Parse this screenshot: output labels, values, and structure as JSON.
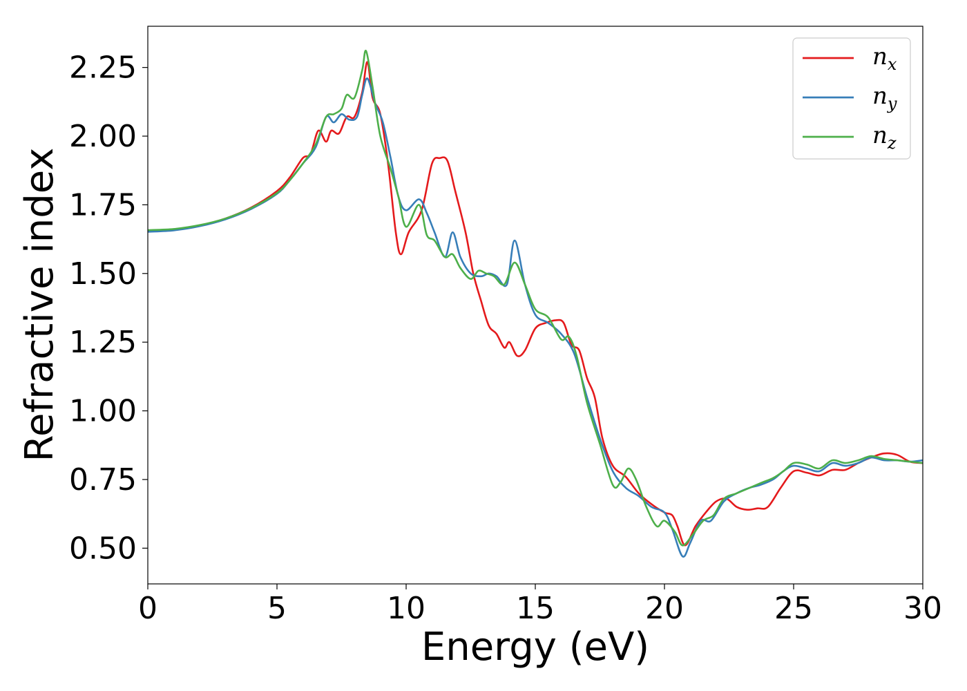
{
  "chart_data": {
    "type": "line",
    "xlabel": "Energy (eV)",
    "ylabel": "Refractive index",
    "xlim": [
      0,
      30
    ],
    "ylim": [
      0.37,
      2.4
    ],
    "xticks": [
      0,
      5,
      10,
      15,
      20,
      25,
      30
    ],
    "yticks": [
      0.5,
      0.75,
      1.0,
      1.25,
      1.5,
      1.75,
      2.0,
      2.25
    ],
    "ytick_labels": [
      "0.50",
      "0.75",
      "1.00",
      "1.25",
      "1.50",
      "1.75",
      "2.00",
      "2.25"
    ],
    "xtick_labels": [
      "0",
      "5",
      "10",
      "15",
      "20",
      "25",
      "30"
    ],
    "grid": false,
    "legend": "top-right",
    "series": [
      {
        "name": "n_x",
        "label_main": "n",
        "label_sub": "x",
        "color": "#e41a1c",
        "points": [
          [
            0,
            1.655
          ],
          [
            1,
            1.66
          ],
          [
            2,
            1.675
          ],
          [
            3,
            1.7
          ],
          [
            4,
            1.74
          ],
          [
            5,
            1.8
          ],
          [
            5.5,
            1.85
          ],
          [
            6,
            1.92
          ],
          [
            6.3,
            1.935
          ],
          [
            6.6,
            2.02
          ],
          [
            6.9,
            1.98
          ],
          [
            7.1,
            2.02
          ],
          [
            7.4,
            2.01
          ],
          [
            7.7,
            2.07
          ],
          [
            8.0,
            2.07
          ],
          [
            8.3,
            2.16
          ],
          [
            8.5,
            2.27
          ],
          [
            8.7,
            2.14
          ],
          [
            9.0,
            2.08
          ],
          [
            9.3,
            1.9
          ],
          [
            9.6,
            1.65
          ],
          [
            9.8,
            1.57
          ],
          [
            10.1,
            1.65
          ],
          [
            10.6,
            1.73
          ],
          [
            11.0,
            1.9
          ],
          [
            11.3,
            1.92
          ],
          [
            11.6,
            1.91
          ],
          [
            11.9,
            1.8
          ],
          [
            12.3,
            1.65
          ],
          [
            12.6,
            1.5
          ],
          [
            12.9,
            1.4
          ],
          [
            13.2,
            1.31
          ],
          [
            13.5,
            1.28
          ],
          [
            13.8,
            1.23
          ],
          [
            14.0,
            1.25
          ],
          [
            14.3,
            1.2
          ],
          [
            14.6,
            1.22
          ],
          [
            15.0,
            1.3
          ],
          [
            15.4,
            1.32
          ],
          [
            15.8,
            1.33
          ],
          [
            16.1,
            1.32
          ],
          [
            16.4,
            1.24
          ],
          [
            16.7,
            1.22
          ],
          [
            17.0,
            1.12
          ],
          [
            17.3,
            1.05
          ],
          [
            17.6,
            0.9
          ],
          [
            18.0,
            0.8
          ],
          [
            18.5,
            0.76
          ],
          [
            19.0,
            0.7
          ],
          [
            19.5,
            0.66
          ],
          [
            20.0,
            0.63
          ],
          [
            20.3,
            0.62
          ],
          [
            20.5,
            0.58
          ],
          [
            20.8,
            0.51
          ],
          [
            21.2,
            0.58
          ],
          [
            21.6,
            0.63
          ],
          [
            22.0,
            0.67
          ],
          [
            22.4,
            0.68
          ],
          [
            22.8,
            0.65
          ],
          [
            23.2,
            0.64
          ],
          [
            23.6,
            0.645
          ],
          [
            24.0,
            0.65
          ],
          [
            24.5,
            0.72
          ],
          [
            25.0,
            0.78
          ],
          [
            25.5,
            0.775
          ],
          [
            26.0,
            0.765
          ],
          [
            26.5,
            0.785
          ],
          [
            27.0,
            0.785
          ],
          [
            27.5,
            0.81
          ],
          [
            28.0,
            0.83
          ],
          [
            28.5,
            0.845
          ],
          [
            29.0,
            0.84
          ],
          [
            29.5,
            0.815
          ],
          [
            30.0,
            0.81
          ]
        ]
      },
      {
        "name": "n_y",
        "label_main": "n",
        "label_sub": "y",
        "color": "#377eb8",
        "points": [
          [
            0,
            1.652
          ],
          [
            1,
            1.657
          ],
          [
            2,
            1.672
          ],
          [
            3,
            1.697
          ],
          [
            4,
            1.735
          ],
          [
            5,
            1.79
          ],
          [
            5.5,
            1.84
          ],
          [
            6,
            1.9
          ],
          [
            6.5,
            1.96
          ],
          [
            6.9,
            2.07
          ],
          [
            7.2,
            2.05
          ],
          [
            7.5,
            2.08
          ],
          [
            7.8,
            2.06
          ],
          [
            8.1,
            2.07
          ],
          [
            8.3,
            2.15
          ],
          [
            8.5,
            2.21
          ],
          [
            8.8,
            2.12
          ],
          [
            9.1,
            2.05
          ],
          [
            9.4,
            1.92
          ],
          [
            9.7,
            1.78
          ],
          [
            10.0,
            1.73
          ],
          [
            10.5,
            1.77
          ],
          [
            10.8,
            1.72
          ],
          [
            11.1,
            1.65
          ],
          [
            11.5,
            1.56
          ],
          [
            11.8,
            1.65
          ],
          [
            12.1,
            1.56
          ],
          [
            12.5,
            1.5
          ],
          [
            12.9,
            1.49
          ],
          [
            13.2,
            1.5
          ],
          [
            13.5,
            1.49
          ],
          [
            13.9,
            1.46
          ],
          [
            14.2,
            1.62
          ],
          [
            14.6,
            1.46
          ],
          [
            15.0,
            1.35
          ],
          [
            15.5,
            1.32
          ],
          [
            16.0,
            1.28
          ],
          [
            16.5,
            1.21
          ],
          [
            17.0,
            1.05
          ],
          [
            17.5,
            0.9
          ],
          [
            18.0,
            0.78
          ],
          [
            18.5,
            0.72
          ],
          [
            19.0,
            0.69
          ],
          [
            19.5,
            0.65
          ],
          [
            20.0,
            0.63
          ],
          [
            20.3,
            0.57
          ],
          [
            20.7,
            0.47
          ],
          [
            21.0,
            0.52
          ],
          [
            21.4,
            0.6
          ],
          [
            21.8,
            0.6
          ],
          [
            22.3,
            0.67
          ],
          [
            22.8,
            0.7
          ],
          [
            23.3,
            0.72
          ],
          [
            23.7,
            0.73
          ],
          [
            24.2,
            0.75
          ],
          [
            24.6,
            0.78
          ],
          [
            25.0,
            0.8
          ],
          [
            25.5,
            0.79
          ],
          [
            26.0,
            0.78
          ],
          [
            26.5,
            0.81
          ],
          [
            27.0,
            0.8
          ],
          [
            27.5,
            0.81
          ],
          [
            28.0,
            0.83
          ],
          [
            28.5,
            0.82
          ],
          [
            29.0,
            0.82
          ],
          [
            29.5,
            0.815
          ],
          [
            30.0,
            0.82
          ]
        ]
      },
      {
        "name": "n_z",
        "label_main": "n",
        "label_sub": "z",
        "color": "#4daf4a",
        "points": [
          [
            0,
            1.658
          ],
          [
            1,
            1.662
          ],
          [
            2,
            1.676
          ],
          [
            3,
            1.7
          ],
          [
            4,
            1.738
          ],
          [
            5,
            1.793
          ],
          [
            5.5,
            1.84
          ],
          [
            6,
            1.9
          ],
          [
            6.5,
            1.97
          ],
          [
            6.9,
            2.07
          ],
          [
            7.2,
            2.08
          ],
          [
            7.5,
            2.1
          ],
          [
            7.7,
            2.15
          ],
          [
            8.0,
            2.14
          ],
          [
            8.3,
            2.24
          ],
          [
            8.45,
            2.31
          ],
          [
            8.7,
            2.18
          ],
          [
            9.0,
            2.0
          ],
          [
            9.4,
            1.88
          ],
          [
            9.7,
            1.78
          ],
          [
            10.0,
            1.67
          ],
          [
            10.5,
            1.75
          ],
          [
            10.8,
            1.64
          ],
          [
            11.1,
            1.62
          ],
          [
            11.5,
            1.56
          ],
          [
            11.8,
            1.57
          ],
          [
            12.1,
            1.52
          ],
          [
            12.5,
            1.48
          ],
          [
            12.8,
            1.51
          ],
          [
            13.1,
            1.5
          ],
          [
            13.4,
            1.49
          ],
          [
            13.8,
            1.46
          ],
          [
            14.2,
            1.54
          ],
          [
            14.6,
            1.46
          ],
          [
            15.0,
            1.37
          ],
          [
            15.5,
            1.34
          ],
          [
            16.0,
            1.26
          ],
          [
            16.3,
            1.27
          ],
          [
            16.6,
            1.2
          ],
          [
            17.0,
            1.03
          ],
          [
            17.5,
            0.88
          ],
          [
            18.0,
            0.73
          ],
          [
            18.3,
            0.74
          ],
          [
            18.6,
            0.79
          ],
          [
            18.9,
            0.75
          ],
          [
            19.3,
            0.65
          ],
          [
            19.7,
            0.58
          ],
          [
            20.0,
            0.6
          ],
          [
            20.4,
            0.56
          ],
          [
            20.7,
            0.51
          ],
          [
            21.1,
            0.55
          ],
          [
            21.5,
            0.6
          ],
          [
            21.9,
            0.62
          ],
          [
            22.3,
            0.68
          ],
          [
            22.8,
            0.7
          ],
          [
            23.3,
            0.72
          ],
          [
            23.8,
            0.74
          ],
          [
            24.2,
            0.755
          ],
          [
            24.6,
            0.78
          ],
          [
            25.0,
            0.81
          ],
          [
            25.5,
            0.805
          ],
          [
            26.0,
            0.79
          ],
          [
            26.5,
            0.82
          ],
          [
            27.0,
            0.81
          ],
          [
            27.5,
            0.82
          ],
          [
            28.0,
            0.835
          ],
          [
            28.5,
            0.825
          ],
          [
            29.0,
            0.82
          ],
          [
            29.5,
            0.815
          ],
          [
            30.0,
            0.81
          ]
        ]
      }
    ]
  }
}
